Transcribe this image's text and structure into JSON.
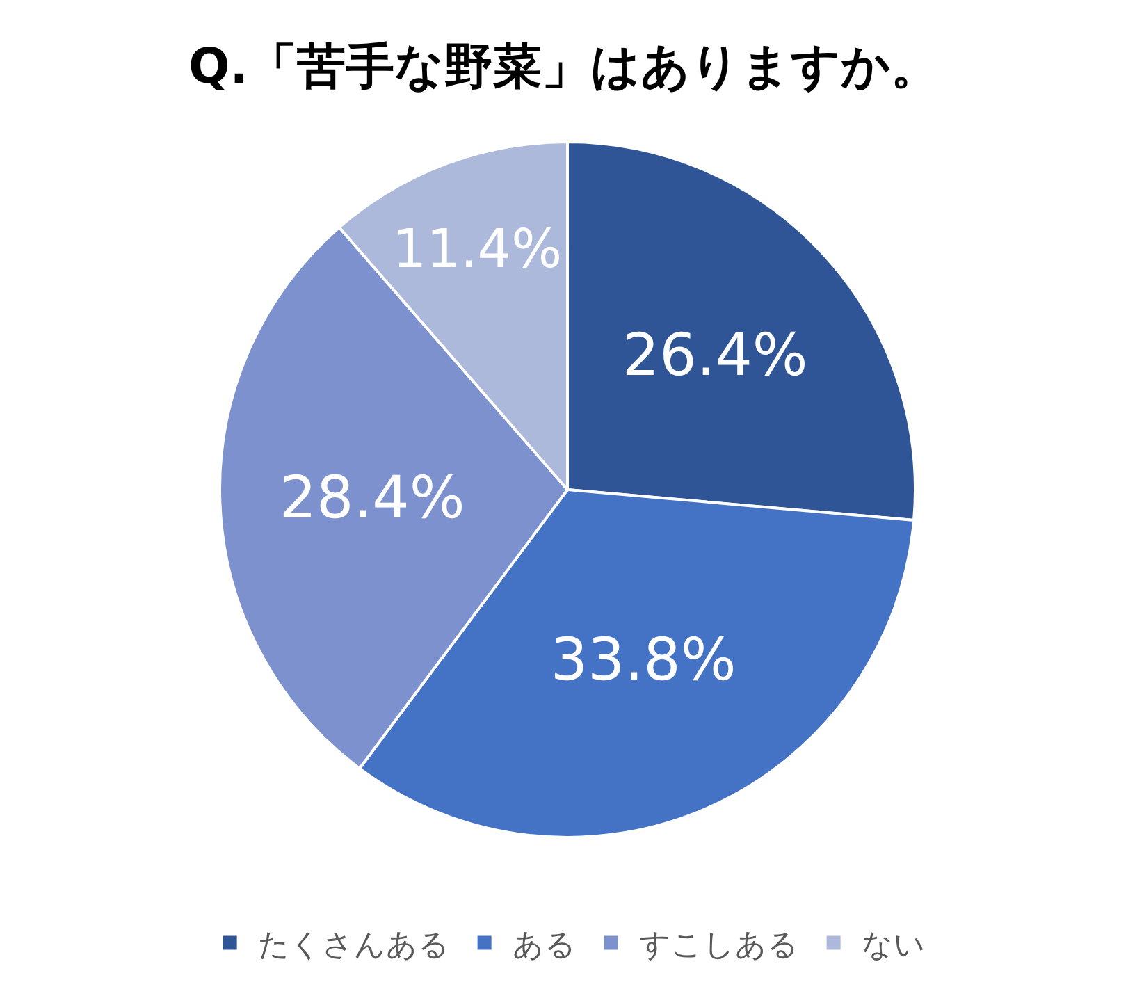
{
  "chart_data": {
    "type": "pie",
    "title": "Q.「苦手な野菜」はありますか。",
    "categories": [
      "たくさんある",
      "ある",
      "すこしある",
      "ない"
    ],
    "values": [
      26.4,
      33.8,
      28.4,
      11.4
    ],
    "colors": [
      "#2f5597",
      "#4472c4",
      "#7c91cd",
      "#adb9db"
    ],
    "value_labels": [
      "26.4%",
      "33.8%",
      "28.4%",
      "11.4%"
    ],
    "legend": "bottom"
  }
}
